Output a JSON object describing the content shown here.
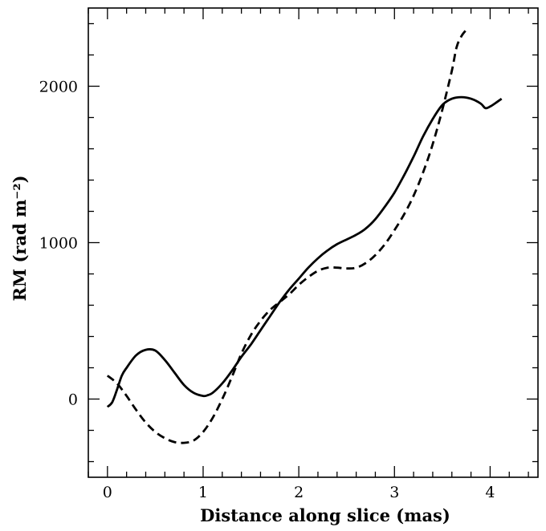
{
  "chart_data": {
    "type": "line",
    "title": "",
    "xlabel": "Distance along slice (mas)",
    "ylabel": "RM (rad m⁻²)",
    "xlim": [
      -0.2,
      4.5
    ],
    "ylim": [
      -500,
      2500
    ],
    "x_ticks": [
      "0",
      "1",
      "2",
      "3",
      "4"
    ],
    "y_ticks": [
      "0",
      "1000",
      "2000"
    ],
    "grid": false,
    "legend": "none",
    "series": [
      {
        "style": "solid",
        "color": "#000000",
        "x": [
          0.0,
          0.05,
          0.1,
          0.15,
          0.2,
          0.3,
          0.4,
          0.5,
          0.6,
          0.7,
          0.8,
          0.9,
          1.0,
          1.05,
          1.1,
          1.2,
          1.3,
          1.4,
          1.5,
          1.6,
          1.7,
          1.8,
          1.9,
          2.0,
          2.1,
          2.2,
          2.3,
          2.4,
          2.5,
          2.6,
          2.7,
          2.8,
          2.9,
          3.0,
          3.1,
          3.2,
          3.3,
          3.4,
          3.5,
          3.6,
          3.7,
          3.8,
          3.9,
          3.95,
          4.0,
          4.05,
          4.12
        ],
        "y": [
          -50,
          -20,
          60,
          150,
          200,
          280,
          315,
          310,
          250,
          170,
          90,
          40,
          20,
          25,
          40,
          100,
          180,
          270,
          350,
          440,
          530,
          620,
          700,
          770,
          840,
          900,
          950,
          990,
          1020,
          1050,
          1090,
          1150,
          1230,
          1320,
          1430,
          1550,
          1680,
          1790,
          1880,
          1920,
          1930,
          1920,
          1890,
          1860,
          1870,
          1890,
          1920
        ]
      },
      {
        "style": "dashed",
        "color": "#000000",
        "x": [
          0.0,
          0.1,
          0.2,
          0.3,
          0.4,
          0.5,
          0.6,
          0.7,
          0.8,
          0.9,
          1.0,
          1.1,
          1.2,
          1.3,
          1.4,
          1.5,
          1.6,
          1.7,
          1.8,
          1.9,
          2.0,
          2.1,
          2.2,
          2.3,
          2.4,
          2.5,
          2.6,
          2.7,
          2.8,
          2.9,
          3.0,
          3.1,
          3.2,
          3.3,
          3.4,
          3.5,
          3.6,
          3.65,
          3.7,
          3.75
        ],
        "y": [
          150,
          100,
          20,
          -70,
          -150,
          -210,
          -250,
          -275,
          -280,
          -265,
          -210,
          -120,
          0,
          140,
          290,
          410,
          500,
          570,
          620,
          670,
          730,
          780,
          820,
          840,
          840,
          835,
          840,
          870,
          920,
          990,
          1080,
          1180,
          1300,
          1450,
          1630,
          1850,
          2100,
          2250,
          2320,
          2360
        ]
      }
    ]
  }
}
